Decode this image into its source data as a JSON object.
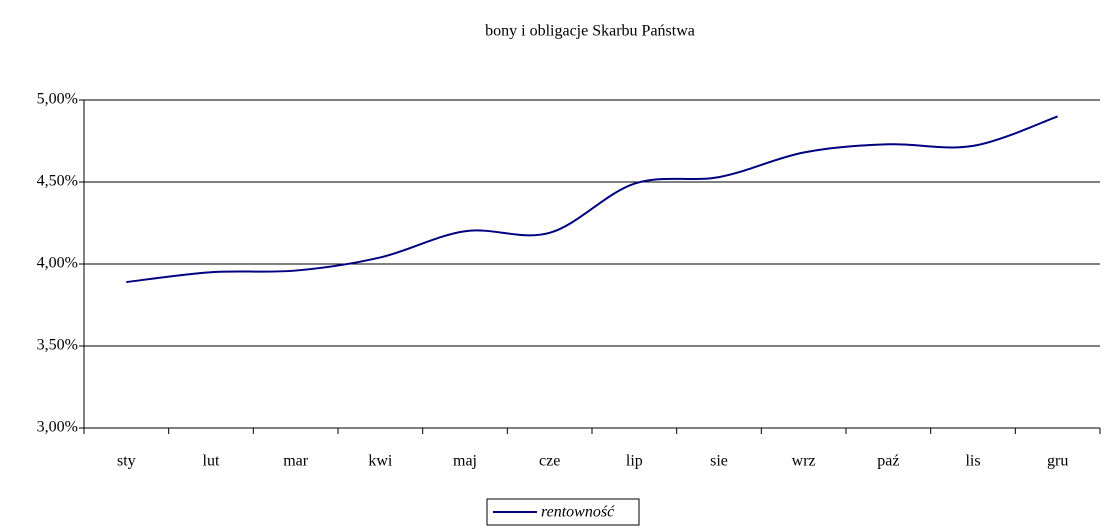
{
  "chart_data": {
    "type": "line",
    "title": "bony i obligacje Skarbu Państwa",
    "categories": [
      "sty",
      "lut",
      "mar",
      "kwi",
      "maj",
      "cze",
      "lip",
      "sie",
      "wrz",
      "paź",
      "lis",
      "gru"
    ],
    "series": [
      {
        "name": "rentowność",
        "color": "#000080",
        "values": [
          3.89,
          3.95,
          3.96,
          4.04,
          4.2,
          4.19,
          4.49,
          4.53,
          4.68,
          4.73,
          4.72,
          4.9
        ]
      }
    ],
    "ylim": [
      3,
      5
    ],
    "yticks": [
      {
        "value": 3,
        "label": "3,00%"
      },
      {
        "value": 3.5,
        "label": "3,50%"
      },
      {
        "value": 4,
        "label": "4,00%"
      },
      {
        "value": 4.5,
        "label": "4,50%"
      },
      {
        "value": 5,
        "label": "5,00%"
      }
    ],
    "grid": true,
    "smooth": true,
    "legend": "bottom"
  }
}
